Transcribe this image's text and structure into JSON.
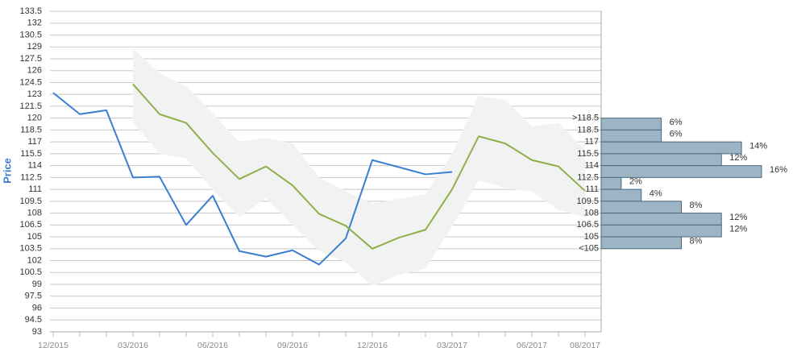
{
  "chart_data": [
    {
      "type": "line",
      "y_label": "Price",
      "categories": [
        "12/2015",
        null,
        null,
        "03/2016",
        null,
        null,
        "06/2016",
        null,
        null,
        "09/2016",
        null,
        null,
        "12/2016",
        null,
        null,
        "03/2017",
        null,
        null,
        "06/2017",
        null,
        "08/2017"
      ],
      "series": [
        {
          "color": "#3a7fd0",
          "values": [
            123.2,
            120.5,
            121,
            112.5,
            112.6,
            106.5,
            110.2,
            103.2,
            102.5,
            103.3,
            101.5,
            104.8,
            114.7,
            113.8,
            112.9,
            113.2,
            null,
            null,
            null,
            null,
            null
          ]
        },
        {
          "color": "#8db04a",
          "values": [
            null,
            null,
            null,
            124.3,
            120.5,
            119.4,
            115.6,
            112.3,
            113.9,
            111.5,
            107.9,
            106.4,
            103.5,
            104.9,
            105.9,
            111,
            117.7,
            116.8,
            114.7,
            113.9,
            110.8
          ]
        }
      ],
      "band": {
        "color": "#f2f2f2",
        "upper": [
          null,
          null,
          null,
          128.8,
          125.7,
          124,
          120.6,
          117,
          117.5,
          116.8,
          112.5,
          110.8,
          109.2,
          109.8,
          110.4,
          115.5,
          122.8,
          122.3,
          119,
          119.4,
          116
        ],
        "lower": [
          null,
          null,
          null,
          119.5,
          115.5,
          114.9,
          110.9,
          107.5,
          109.9,
          106.5,
          103.2,
          101.8,
          98.8,
          100.2,
          101,
          106.3,
          112.1,
          111.2,
          110.7,
          108.4,
          107.5
        ]
      },
      "ylim": [
        93,
        133.5
      ],
      "yticks": [
        93,
        94.5,
        96,
        97.5,
        99,
        100.5,
        102,
        103.5,
        105,
        106.5,
        108,
        109.5,
        111,
        112.5,
        114,
        115.5,
        117,
        118.5,
        120,
        121.5,
        123,
        124.5,
        126,
        127.5,
        129,
        130.5,
        132,
        133.5
      ],
      "grid": true
    },
    {
      "type": "histogram",
      "orientation": "horizontal",
      "bins": [
        {
          "value": 120,
          "label": ">118.5"
        },
        118.5,
        117,
        115.5,
        114,
        112.5,
        111,
        109.5,
        108,
        106.5,
        105,
        {
          "value": 103.5,
          "label": "<105"
        }
      ],
      "values": [
        6,
        6,
        14,
        12,
        16,
        2,
        4,
        8,
        12,
        12,
        8
      ],
      "value_labels": [
        "6%",
        "6%",
        "14%",
        "12%",
        "16%",
        "2%",
        "4%",
        "8%",
        "12%",
        "12%",
        "8%"
      ],
      "xlim": [
        0,
        16
      ],
      "color": "#9db4c4",
      "edge_color": "#4a6a80"
    }
  ]
}
